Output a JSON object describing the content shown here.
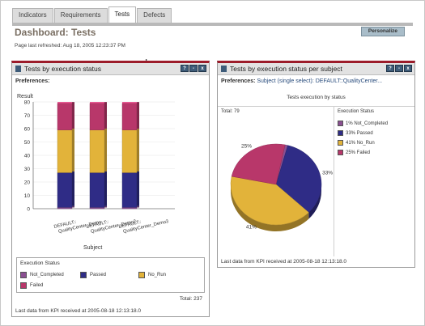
{
  "tabs": [
    "Indicators",
    "Requirements",
    "Tests",
    "Defects"
  ],
  "active_tab": 2,
  "header": {
    "title": "Dashboard: Tests",
    "refreshed": "Page last refreshed: Aug 18, 2005 12:23:37 PM",
    "personalize_label": "Personalize"
  },
  "colors": {
    "Not_Completed": "#8a4f91",
    "Passed": "#2f2c86",
    "No_Run": "#e2b33a",
    "Failed": "#b8376a",
    "portlet_border": "#9c1c2a"
  },
  "left_portlet": {
    "title": "Tests by execution status",
    "prefs_label": "Preferences:",
    "buttons": [
      "?",
      "-",
      "x"
    ],
    "legend_title": "Execution Status",
    "total": "Total: 237",
    "footer": "Last data from KPI received at 2005-08-18 12:13:18.0"
  },
  "right_portlet": {
    "title": "Tests by execution status per subject",
    "prefs_label": "Preferences:",
    "prefs_value": "Subject (single select): DEFAULT::QualityCenter...",
    "buttons": [
      "?",
      "-",
      "x"
    ],
    "subtitle": "Tests execution by status",
    "total": "Total: 79",
    "legend_title": "Execution Status",
    "legend": [
      {
        "key": "Not_Completed",
        "label": "1% Not_Completed"
      },
      {
        "key": "Passed",
        "label": "33% Passed"
      },
      {
        "key": "No_Run",
        "label": "41% No_Run"
      },
      {
        "key": "Failed",
        "label": "25% Failed"
      }
    ],
    "footer": "Last data from KPI received at 2005-08-18 12:13:18.0"
  },
  "chart_data": [
    {
      "type": "bar",
      "stacked": true,
      "title": "Result",
      "xlabel": "Subject",
      "ylabel": "",
      "ylim": [
        0,
        80
      ],
      "yticks": [
        0,
        10,
        20,
        30,
        40,
        50,
        60,
        70,
        80
      ],
      "categories": [
        "DEFAULT::QualityCenter_Demo",
        "DEFAULT::QualityCenter_Demo2",
        "DEFAULT::QualityCenter_Demo3"
      ],
      "category_display": [
        "DEFAULT::\nQualityCenter_Demo",
        "DEFAULT::\nQualityCenter_Demo2",
        "DEFAULT::\nQualityCenter_Demo3"
      ],
      "series": [
        {
          "name": "Not_Completed",
          "values": [
            1,
            1,
            1
          ]
        },
        {
          "name": "Passed",
          "values": [
            26,
            26,
            26
          ]
        },
        {
          "name": "No_Run",
          "values": [
            32,
            32,
            32
          ]
        },
        {
          "name": "Failed",
          "values": [
            20,
            20,
            20
          ]
        }
      ],
      "legend_position": "bottom",
      "grid": true
    },
    {
      "type": "pie",
      "title": "Tests execution by status",
      "labels": [
        "Not_Completed",
        "Passed",
        "No_Run",
        "Failed"
      ],
      "values": [
        1,
        33,
        41,
        25
      ],
      "data_labels": [
        "",
        "33%",
        "41%",
        "25%"
      ],
      "legend_position": "right"
    }
  ]
}
